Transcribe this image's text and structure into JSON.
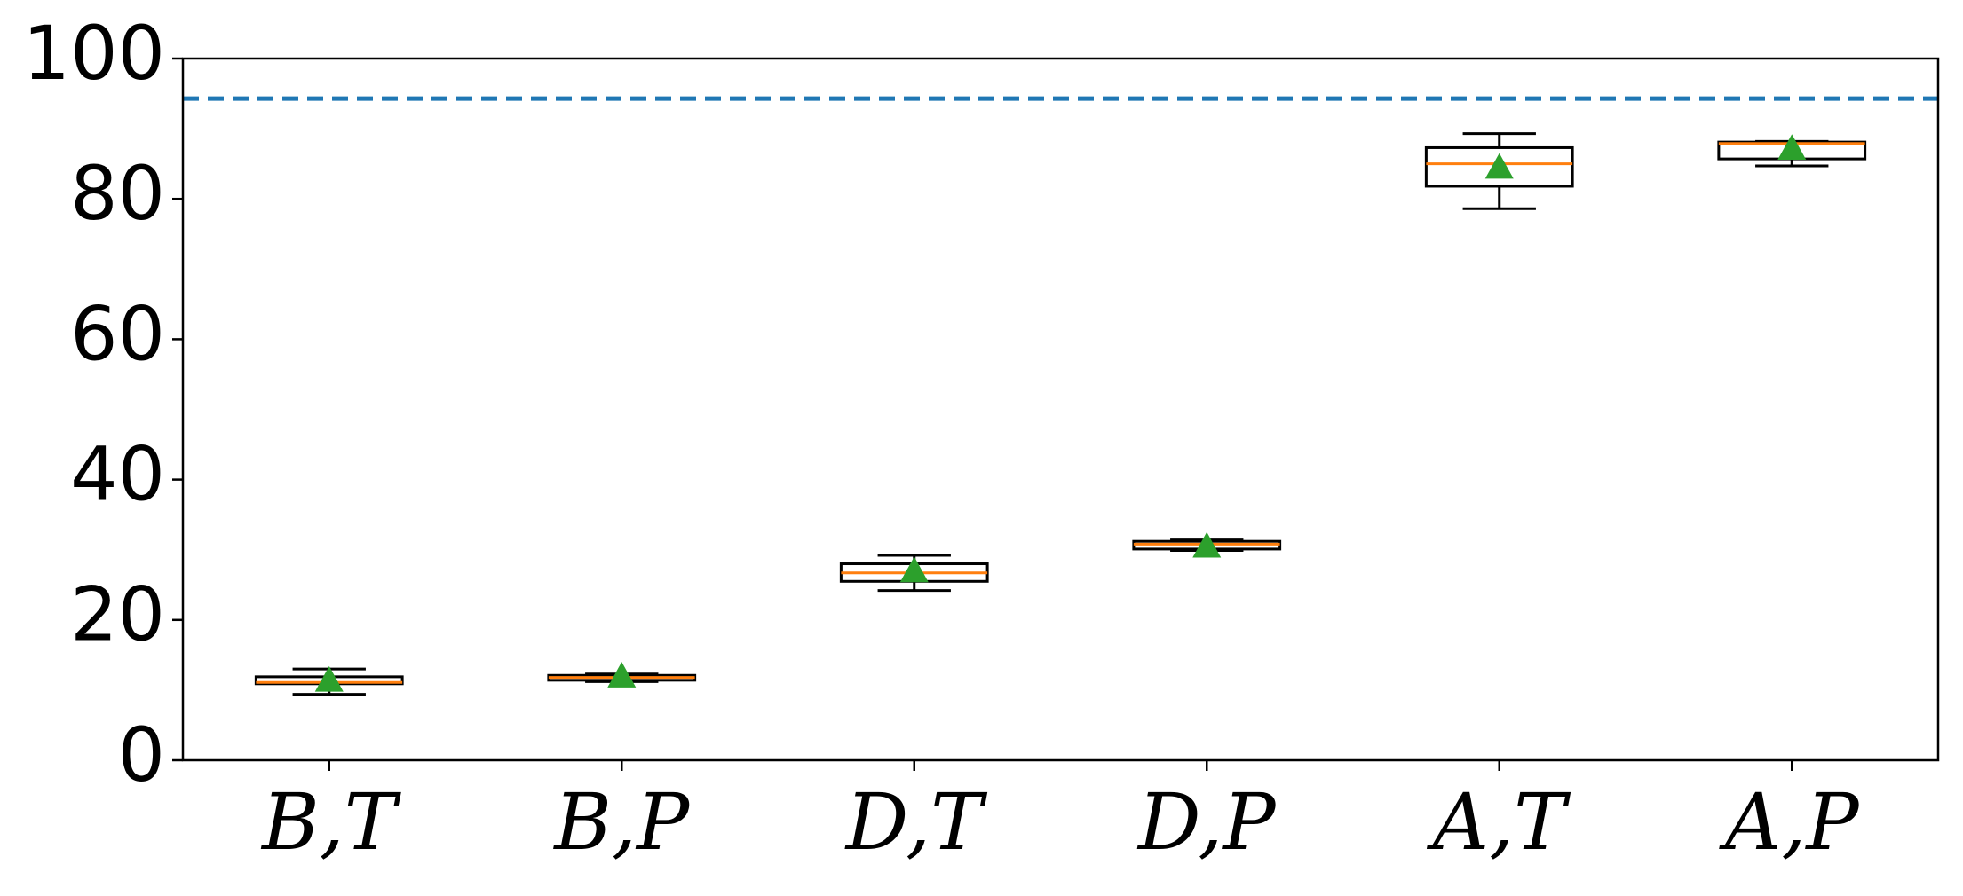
{
  "chart_data": {
    "type": "box",
    "categories": [
      "B,T",
      "B,P",
      "D,T",
      "D,P",
      "A,T",
      "A,P"
    ],
    "boxes": [
      {
        "whislo": 9.4,
        "q1": 10.9,
        "med": 11.1,
        "q3": 11.9,
        "whishi": 13.0,
        "mean": 11.4
      },
      {
        "whislo": 11.2,
        "q1": 11.4,
        "med": 11.8,
        "q3": 12.1,
        "whishi": 12.3,
        "mean": 12.0
      },
      {
        "whislo": 24.2,
        "q1": 25.5,
        "med": 26.7,
        "q3": 28.0,
        "whishi": 29.2,
        "mean": 27.0
      },
      {
        "whislo": 29.9,
        "q1": 30.1,
        "med": 30.8,
        "q3": 31.2,
        "whishi": 31.4,
        "mean": 30.5
      },
      {
        "whislo": 78.6,
        "q1": 81.8,
        "med": 85.0,
        "q3": 87.3,
        "whishi": 89.3,
        "mean": 84.5
      },
      {
        "whislo": 84.7,
        "q1": 85.7,
        "med": 87.9,
        "q3": 88.1,
        "whishi": 88.2,
        "mean": 87.2
      }
    ],
    "box_color": "#000000",
    "median_color": "#ff7f0e",
    "mean_color": "#2ca02c",
    "reference_line": {
      "value": 94.3,
      "color": "#1f77b4"
    },
    "ylim": [
      0,
      100
    ],
    "yticks": [
      0,
      20,
      40,
      60,
      80,
      100
    ]
  }
}
